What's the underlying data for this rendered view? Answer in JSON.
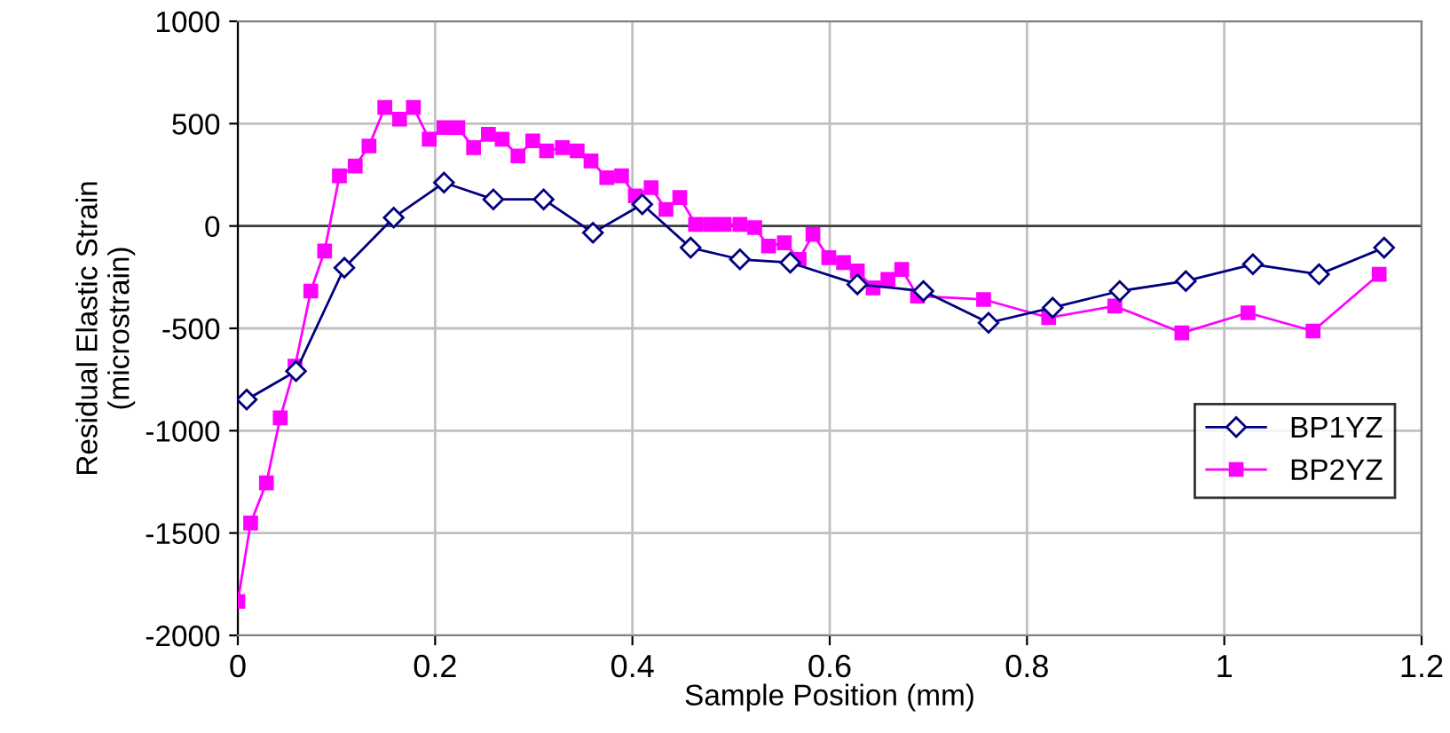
{
  "chart_data": {
    "type": "line",
    "xlabel": "Sample Position (mm)",
    "ylabel": "Residual Elastic Strain\n(microstrain)",
    "xlim": [
      0,
      1.2
    ],
    "xticks": [
      0,
      0.2,
      0.4,
      0.6,
      0.8,
      1,
      1.2
    ],
    "ylim": [
      -2000,
      1000
    ],
    "yticks": [
      -2000,
      -1500,
      -1000,
      -500,
      0,
      500,
      1000
    ],
    "grid": true,
    "legend": "bottom right",
    "line_style": "solid",
    "series": [
      {
        "name": "BP1YZ",
        "color": "#000080",
        "marker": "diamond",
        "x": [
          0.009,
          0.059,
          0.108,
          0.158,
          0.209,
          0.259,
          0.31,
          0.36,
          0.41,
          0.459,
          0.509,
          0.56,
          0.628,
          0.695,
          0.761,
          0.826,
          0.894,
          0.961,
          1.029,
          1.096,
          1.162
        ],
        "values": [
          -848,
          -709,
          -204,
          41,
          212,
          130,
          130,
          -33,
          106,
          -106,
          -163,
          -179,
          -285,
          -318,
          -473,
          -399,
          -318,
          -269,
          -187,
          -236,
          -106
        ]
      },
      {
        "name": "BP2YZ",
        "color": "#ff00ff",
        "marker": "square",
        "x": [
          0.0,
          0.013,
          0.029,
          0.043,
          0.058,
          0.074,
          0.088,
          0.103,
          0.119,
          0.133,
          0.149,
          0.164,
          0.178,
          0.194,
          0.209,
          0.223,
          0.239,
          0.254,
          0.268,
          0.284,
          0.299,
          0.313,
          0.329,
          0.344,
          0.358,
          0.374,
          0.389,
          0.403,
          0.419,
          0.434,
          0.448,
          0.464,
          0.479,
          0.493,
          0.509,
          0.524,
          0.538,
          0.554,
          0.569,
          0.583,
          0.599,
          0.614,
          0.628,
          0.644,
          0.659,
          0.673,
          0.689,
          0.756,
          0.822,
          0.889,
          0.957,
          1.024,
          1.09,
          1.157
        ],
        "values": [
          -1834,
          -1451,
          -1255,
          -937,
          -685,
          -318,
          -122,
          245,
          293,
          391,
          579,
          522,
          579,
          424,
          481,
          481,
          383,
          448,
          424,
          342,
          416,
          367,
          383,
          367,
          318,
          236,
          245,
          147,
          187,
          81,
          139,
          8,
          8,
          8,
          8,
          -8,
          -98,
          -82,
          -163,
          -41,
          -155,
          -179,
          -220,
          -302,
          -261,
          -212,
          -342,
          -359,
          -448,
          -391,
          -522,
          -424,
          -513,
          -236
        ]
      }
    ]
  }
}
